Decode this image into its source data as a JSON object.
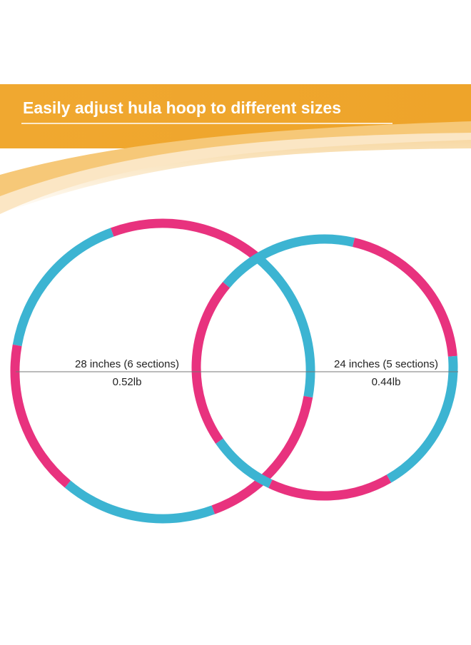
{
  "header": {
    "title": "Easily adjust hula hoop to different sizes"
  },
  "hoops": [
    {
      "size": "28 inches (6 sections)",
      "weight": "0.52lb"
    },
    {
      "size": "24 inches (5 sections)",
      "weight": "0.44lb"
    }
  ]
}
